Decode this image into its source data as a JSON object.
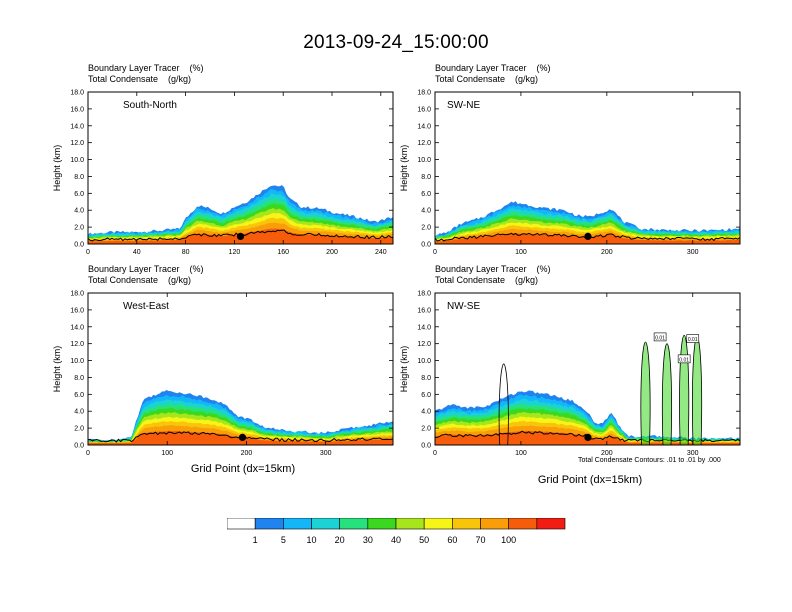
{
  "title": "2013-09-24_15:00:00",
  "colors": {
    "levels": [
      "#ffffff",
      "#1f83f0",
      "#13b7f9",
      "#1bd3d4",
      "#26e27d",
      "#3ad91f",
      "#a7e61c",
      "#f7f518",
      "#f9c50b",
      "#f99d08",
      "#f75c0a",
      "#f21c12"
    ]
  },
  "colorbar": {
    "labels": [
      "1",
      "5",
      "10",
      "20",
      "30",
      "40",
      "50",
      "60",
      "70",
      "100"
    ]
  },
  "footnote": "Total Condensate Contours: .01 to .01 by .000",
  "chart_data": [
    {
      "type": "heatmap",
      "panel_label": "South-North",
      "subtitle_line1": "Boundary Layer Tracer    (%)",
      "subtitle_line2": "Total Condensate    (g/kg)",
      "ylabel": "Height (km)",
      "xlabel": "",
      "xlim": [
        0,
        250
      ],
      "ylim": [
        0,
        18
      ],
      "xticks": [
        0,
        40,
        80,
        120,
        160,
        200,
        240
      ],
      "yticks": [
        "0.0",
        "2.0",
        "4.0",
        "6.0",
        "8.0",
        "10.0",
        "12.0",
        "14.0",
        "16.0",
        "18.0"
      ],
      "marker_x": 125,
      "tracer_top": [
        [
          0,
          1.2
        ],
        [
          20,
          1.4
        ],
        [
          40,
          1.4
        ],
        [
          60,
          1.6
        ],
        [
          75,
          1.8
        ],
        [
          80,
          3
        ],
        [
          90,
          4.6
        ],
        [
          100,
          4.2
        ],
        [
          110,
          3.6
        ],
        [
          120,
          4.4
        ],
        [
          130,
          5
        ],
        [
          140,
          6
        ],
        [
          150,
          7
        ],
        [
          160,
          6.8
        ],
        [
          165,
          5.4
        ],
        [
          175,
          4.4
        ],
        [
          190,
          4.2
        ],
        [
          205,
          3.6
        ],
        [
          220,
          3.2
        ],
        [
          235,
          2.6
        ],
        [
          250,
          3.2
        ]
      ]
    },
    {
      "type": "heatmap",
      "panel_label": "SW-NE",
      "subtitle_line1": "Boundary Layer Tracer    (%)",
      "subtitle_line2": "Total Condensate    (g/kg)",
      "ylabel": "Height (km)",
      "xlabel": "",
      "xlim": [
        0,
        355
      ],
      "ylim": [
        0,
        18
      ],
      "xticks": [
        0,
        100,
        200,
        300
      ],
      "yticks": [
        "0.0",
        "2.0",
        "4.0",
        "6.0",
        "8.0",
        "10.0",
        "12.0",
        "14.0",
        "16.0",
        "18.0"
      ],
      "marker_x": 178,
      "tracer_top": [
        [
          0,
          1
        ],
        [
          15,
          1.4
        ],
        [
          30,
          2.4
        ],
        [
          45,
          2.8
        ],
        [
          60,
          3.4
        ],
        [
          75,
          4.2
        ],
        [
          90,
          5
        ],
        [
          110,
          4.6
        ],
        [
          130,
          4.2
        ],
        [
          150,
          4
        ],
        [
          165,
          3.4
        ],
        [
          180,
          3.2
        ],
        [
          195,
          3.8
        ],
        [
          205,
          4.2
        ],
        [
          220,
          2.6
        ],
        [
          240,
          1.8
        ],
        [
          280,
          1.6
        ],
        [
          320,
          1.6
        ],
        [
          355,
          1.8
        ]
      ]
    },
    {
      "type": "heatmap",
      "panel_label": "West-East",
      "subtitle_line1": "Boundary Layer Tracer    (%)",
      "subtitle_line2": "Total Condensate    (g/kg)",
      "ylabel": "Height (km)",
      "xlabel": "Grid Point (dx=15km)",
      "xlim": [
        0,
        385
      ],
      "ylim": [
        0,
        18
      ],
      "xticks": [
        0,
        100,
        200,
        300
      ],
      "yticks": [
        "0.0",
        "2.0",
        "4.0",
        "6.0",
        "8.0",
        "10.0",
        "12.0",
        "14.0",
        "16.0",
        "18.0"
      ],
      "marker_x": 195,
      "tracer_top": [
        [
          0,
          0.6
        ],
        [
          40,
          0.6
        ],
        [
          55,
          1
        ],
        [
          60,
          2.6
        ],
        [
          70,
          5.4
        ],
        [
          85,
          6
        ],
        [
          100,
          6.4
        ],
        [
          120,
          6.2
        ],
        [
          140,
          5.8
        ],
        [
          160,
          5.4
        ],
        [
          175,
          4.6
        ],
        [
          190,
          3.4
        ],
        [
          205,
          3
        ],
        [
          220,
          2.2
        ],
        [
          240,
          1.8
        ],
        [
          270,
          1.6
        ],
        [
          300,
          1.4
        ],
        [
          330,
          2
        ],
        [
          360,
          2.4
        ],
        [
          385,
          2.8
        ]
      ]
    },
    {
      "type": "heatmap",
      "panel_label": "NW-SE",
      "subtitle_line1": "Boundary Layer Tracer    (%)",
      "subtitle_line2": "Total Condensate    (g/kg)",
      "ylabel": "Height (km)",
      "xlabel": "Grid Point (dx=15km)",
      "xlim": [
        0,
        355
      ],
      "ylim": [
        0,
        18
      ],
      "xticks": [
        0,
        100,
        200,
        300
      ],
      "yticks": [
        "0.0",
        "2.0",
        "4.0",
        "6.0",
        "8.0",
        "10.0",
        "12.0",
        "14.0",
        "16.0",
        "18.0"
      ],
      "marker_x": 178,
      "contour_labels": [
        "0.01",
        "0.01",
        "0.01"
      ],
      "tracer_top": [
        [
          0,
          4
        ],
        [
          20,
          4.8
        ],
        [
          40,
          4.4
        ],
        [
          60,
          4.6
        ],
        [
          80,
          5.6
        ],
        [
          100,
          6.4
        ],
        [
          120,
          6.2
        ],
        [
          140,
          5.8
        ],
        [
          160,
          5.2
        ],
        [
          175,
          4.2
        ],
        [
          185,
          2.8
        ],
        [
          195,
          2.4
        ],
        [
          205,
          4
        ],
        [
          215,
          2.2
        ],
        [
          225,
          1
        ],
        [
          260,
          1
        ],
        [
          300,
          0.8
        ],
        [
          355,
          0.8
        ]
      ]
    }
  ]
}
